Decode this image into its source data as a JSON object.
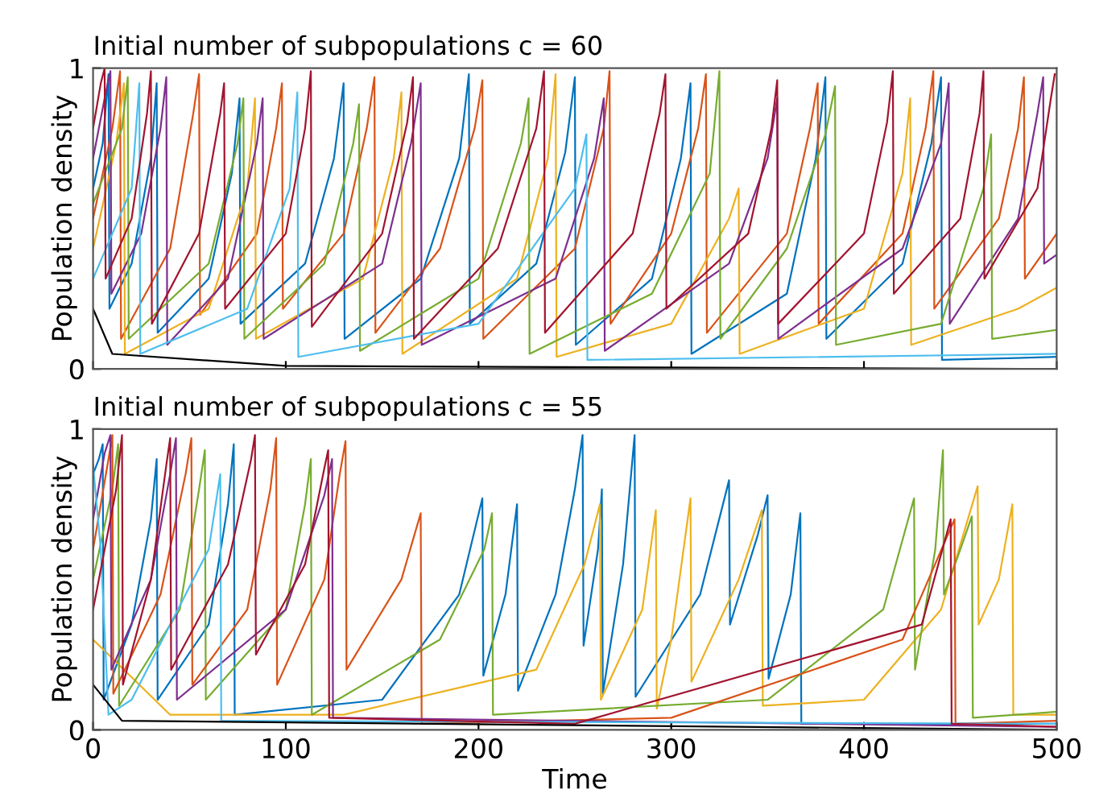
{
  "chart_data": [
    {
      "type": "line",
      "title": "Initial number of subpopulations c = 60",
      "ylabel": "Population density",
      "xlim": [
        0,
        500
      ],
      "ylim": [
        0,
        1
      ],
      "xticks": [
        0,
        100,
        200,
        300,
        400,
        500
      ],
      "yticks": [
        0,
        1
      ],
      "tick_labels": "y",
      "series": [
        {
          "color": "#0072bd",
          "x": [
            0,
            5,
            8,
            8.5,
            20,
            30,
            33,
            33.5,
            60,
            72,
            76,
            76.5,
            110,
            125,
            130,
            130.5,
            170,
            190,
            195,
            195.5,
            230,
            245,
            250,
            250.5,
            290,
            305,
            310,
            310.5,
            360,
            375,
            380,
            380.5,
            420,
            435,
            440,
            440.5,
            500
          ],
          "values": [
            0.6,
            0.75,
            0.98,
            0.2,
            0.35,
            0.7,
            0.95,
            0.12,
            0.3,
            0.65,
            0.9,
            0.15,
            0.35,
            0.7,
            0.95,
            0.1,
            0.3,
            0.7,
            0.98,
            0.15,
            0.35,
            0.72,
            0.97,
            0.08,
            0.3,
            0.7,
            0.95,
            0.05,
            0.25,
            0.7,
            0.97,
            0.1,
            0.35,
            0.75,
            0.97,
            0.03,
            0.04
          ]
        },
        {
          "color": "#d95319",
          "x": [
            0,
            10,
            14,
            14.5,
            40,
            52,
            55,
            55.5,
            85,
            95,
            98,
            98.5,
            130,
            142,
            146,
            146.5,
            180,
            198,
            202,
            202.5,
            250,
            265,
            268,
            268.5,
            300,
            314,
            318,
            318.5,
            360,
            372,
            376,
            376.5,
            420,
            432,
            436,
            436.5,
            470,
            480,
            483,
            483.5,
            500
          ],
          "values": [
            0.5,
            0.8,
            0.99,
            0.1,
            0.4,
            0.85,
            0.98,
            0.18,
            0.45,
            0.8,
            0.95,
            0.2,
            0.45,
            0.8,
            0.97,
            0.12,
            0.4,
            0.8,
            0.96,
            0.1,
            0.4,
            0.8,
            0.99,
            0.15,
            0.45,
            0.8,
            0.98,
            0.12,
            0.45,
            0.8,
            0.95,
            0.15,
            0.45,
            0.8,
            0.99,
            0.2,
            0.5,
            0.8,
            0.97,
            0.3,
            0.45
          ]
        },
        {
          "color": "#edb120",
          "x": [
            0,
            12,
            16,
            16.5,
            60,
            80,
            84,
            84.5,
            140,
            156,
            160,
            160.5,
            220,
            236,
            240,
            240.5,
            300,
            330,
            335,
            335.5,
            400,
            420,
            424,
            424.5,
            480,
            500
          ],
          "values": [
            0.4,
            0.75,
            0.95,
            0.05,
            0.2,
            0.6,
            0.9,
            0.1,
            0.3,
            0.7,
            0.92,
            0.05,
            0.3,
            0.7,
            0.98,
            0.04,
            0.15,
            0.5,
            0.6,
            0.05,
            0.2,
            0.65,
            0.9,
            0.08,
            0.2,
            0.27
          ]
        },
        {
          "color": "#7e2f8e",
          "x": [
            0,
            6,
            9,
            9.5,
            25,
            35,
            38,
            38.5,
            70,
            85,
            88,
            88.5,
            150,
            165,
            170,
            170.5,
            240,
            260,
            265,
            265.5,
            330,
            350,
            355,
            355.5,
            420,
            440,
            444,
            444.5,
            480,
            490,
            493,
            493.5,
            500
          ],
          "values": [
            0.7,
            0.9,
            0.99,
            0.25,
            0.45,
            0.8,
            0.97,
            0.08,
            0.3,
            0.75,
            0.9,
            0.1,
            0.35,
            0.75,
            0.95,
            0.08,
            0.3,
            0.7,
            0.9,
            0.06,
            0.35,
            0.7,
            0.9,
            0.1,
            0.4,
            0.75,
            0.95,
            0.15,
            0.5,
            0.85,
            0.97,
            0.35,
            0.38
          ]
        },
        {
          "color": "#77ac30",
          "x": [
            0,
            15,
            18,
            18.5,
            60,
            75,
            78,
            78.5,
            120,
            135,
            138,
            138.5,
            200,
            222,
            226,
            226.5,
            290,
            320,
            325,
            325.5,
            360,
            380,
            385,
            385.5,
            440,
            462,
            466,
            466.5,
            500
          ],
          "values": [
            0.55,
            0.8,
            0.97,
            0.1,
            0.35,
            0.75,
            0.9,
            0.1,
            0.35,
            0.75,
            0.88,
            0.06,
            0.3,
            0.75,
            0.9,
            0.05,
            0.25,
            0.65,
            0.99,
            0.1,
            0.4,
            0.78,
            0.94,
            0.08,
            0.15,
            0.6,
            0.78,
            0.1,
            0.13
          ]
        },
        {
          "color": "#4dbeee",
          "x": [
            0,
            20,
            24,
            24.5,
            80,
            102,
            106,
            106.5,
            200,
            250,
            256,
            256.5,
            500
          ],
          "values": [
            0.3,
            0.6,
            0.95,
            0.05,
            0.2,
            0.6,
            0.92,
            0.04,
            0.15,
            0.6,
            0.78,
            0.03,
            0.05
          ]
        },
        {
          "color": "#a2142f",
          "x": [
            0,
            4,
            6,
            6.5,
            20,
            28,
            30,
            30.5,
            55,
            66,
            68,
            68.5,
            100,
            110,
            113,
            113.5,
            150,
            163,
            166,
            166.5,
            210,
            230,
            234,
            234.5,
            280,
            294,
            297,
            297.5,
            340,
            352,
            355,
            355.5,
            400,
            412,
            415,
            415.5,
            450,
            460,
            462,
            462.5,
            490,
            497,
            499
          ],
          "values": [
            0.8,
            0.95,
            1.0,
            0.3,
            0.5,
            0.85,
            0.99,
            0.15,
            0.45,
            0.85,
            0.95,
            0.2,
            0.45,
            0.8,
            0.99,
            0.14,
            0.45,
            0.82,
            0.97,
            0.1,
            0.4,
            0.8,
            0.99,
            0.12,
            0.45,
            0.85,
            0.98,
            0.2,
            0.45,
            0.8,
            0.96,
            0.15,
            0.45,
            0.82,
            0.99,
            0.25,
            0.5,
            0.85,
            0.99,
            0.3,
            0.6,
            0.9,
            0.98
          ]
        },
        {
          "color": "#000000",
          "x": [
            0,
            10,
            100,
            500
          ],
          "values": [
            0.2,
            0.05,
            0.01,
            0.0
          ]
        }
      ]
    },
    {
      "type": "line",
      "title": "Initial number of subpopulations c = 55",
      "xlabel": "Time",
      "ylabel": "Population density",
      "xlim": [
        0,
        500
      ],
      "ylim": [
        0,
        1
      ],
      "xticks": [
        0,
        100,
        200,
        300,
        400,
        500
      ],
      "yticks": [
        0,
        1
      ],
      "series": [
        {
          "color": "#0072bd",
          "x": [
            0,
            3,
            5,
            5.5,
            20,
            30,
            33,
            33.5,
            60,
            70,
            73,
            73.5,
            150,
            190,
            202,
            202.5,
            214,
            220,
            220.5,
            240,
            250,
            254,
            254.5,
            262,
            264,
            264.5,
            275,
            281,
            281.5,
            315,
            330,
            330.5,
            345,
            350,
            350.5,
            362,
            367,
            367.5,
            500
          ],
          "values": [
            0.85,
            0.9,
            0.95,
            0.1,
            0.35,
            0.7,
            0.9,
            0.1,
            0.35,
            0.75,
            0.95,
            0.05,
            0.1,
            0.45,
            0.77,
            0.18,
            0.45,
            0.75,
            0.13,
            0.45,
            0.8,
            0.98,
            0.28,
            0.6,
            0.8,
            0.12,
            0.55,
            0.98,
            0.11,
            0.45,
            0.83,
            0.35,
            0.65,
            0.78,
            0.17,
            0.45,
            0.72,
            0.02,
            0.02
          ]
        },
        {
          "color": "#edb120",
          "x": [
            0,
            40,
            130,
            230,
            255,
            263,
            263.5,
            285,
            292,
            292.5,
            300,
            310,
            310.5,
            335,
            347,
            347.5,
            400,
            440,
            459,
            459.5,
            470,
            477,
            477.5,
            500
          ],
          "values": [
            0.3,
            0.05,
            0.05,
            0.2,
            0.55,
            0.75,
            0.1,
            0.4,
            0.73,
            0.07,
            0.3,
            0.77,
            0.16,
            0.5,
            0.73,
            0.08,
            0.1,
            0.4,
            0.81,
            0.35,
            0.5,
            0.75,
            0.05,
            0.05
          ]
        },
        {
          "color": "#77ac30",
          "x": [
            0,
            10,
            13,
            13.5,
            45,
            55,
            58,
            58.5,
            100,
            110,
            113,
            113.5,
            180,
            203,
            207,
            207.5,
            350,
            410,
            426,
            426.5,
            437,
            441,
            441.5,
            450,
            456,
            456.5,
            500
          ],
          "values": [
            0.5,
            0.8,
            0.95,
            0.08,
            0.4,
            0.8,
            0.93,
            0.1,
            0.4,
            0.75,
            0.9,
            0.05,
            0.3,
            0.6,
            0.72,
            0.05,
            0.1,
            0.4,
            0.77,
            0.2,
            0.6,
            0.93,
            0.45,
            0.6,
            0.71,
            0.04,
            0.06
          ]
        },
        {
          "color": "#d95319",
          "x": [
            0,
            8,
            10,
            10.5,
            35,
            48,
            51,
            51.5,
            80,
            92,
            95,
            95.5,
            120,
            128,
            131,
            131.5,
            160,
            170,
            170.5,
            300,
            420,
            447,
            447.5,
            500
          ],
          "values": [
            0.6,
            0.9,
            0.98,
            0.12,
            0.45,
            0.85,
            0.97,
            0.15,
            0.4,
            0.8,
            0.97,
            0.15,
            0.5,
            0.85,
            0.96,
            0.2,
            0.5,
            0.72,
            0.02,
            0.04,
            0.3,
            0.7,
            0.02,
            0.03
          ]
        },
        {
          "color": "#7e2f8e",
          "x": [
            0,
            6,
            9,
            9.5,
            30,
            40,
            43,
            43.5,
            100,
            120,
            124,
            124.5,
            500
          ],
          "values": [
            0.7,
            0.92,
            0.98,
            0.2,
            0.5,
            0.85,
            0.97,
            0.1,
            0.4,
            0.78,
            0.9,
            0.04,
            0.01
          ]
        },
        {
          "color": "#4dbeee",
          "x": [
            0,
            4,
            8,
            20,
            60,
            66,
            66.5,
            500
          ],
          "values": [
            0.88,
            0.6,
            0.05,
            0.1,
            0.6,
            0.85,
            0.03,
            0.02
          ]
        },
        {
          "color": "#a2142f",
          "x": [
            0,
            12,
            15,
            15.5,
            30,
            38,
            40,
            40.5,
            70,
            82,
            84,
            84.5,
            110,
            120,
            122,
            122.5,
            250,
            430,
            445,
            445.5,
            500
          ],
          "values": [
            0.4,
            0.8,
            0.98,
            0.15,
            0.5,
            0.88,
            0.97,
            0.2,
            0.55,
            0.9,
            0.98,
            0.25,
            0.55,
            0.87,
            0.93,
            0.04,
            0.02,
            0.35,
            0.7,
            0.02,
            0.01
          ]
        },
        {
          "color": "#000000",
          "x": [
            0,
            15,
            500
          ],
          "values": [
            0.15,
            0.03,
            0.0
          ]
        }
      ]
    }
  ]
}
